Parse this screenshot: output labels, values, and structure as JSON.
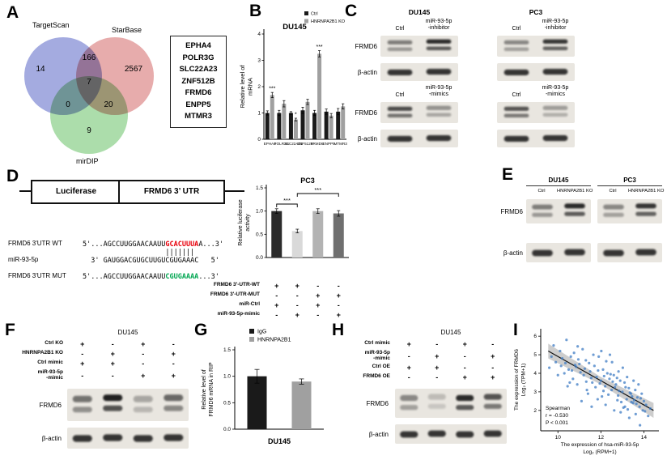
{
  "panel_labels": {
    "A": "A",
    "B": "B",
    "C": "C",
    "D": "D",
    "E": "E",
    "F": "F",
    "G": "G",
    "H": "H",
    "I": "I"
  },
  "colors": {
    "venn_targetscan": "#8a93d8",
    "venn_starbase": "#e09494",
    "venn_mirdip": "#95d493",
    "ctrl_bar": "#1a1a1a",
    "ko_bar": "#a0a0a0",
    "scatter_point": "#3f7cc4"
  },
  "panelA": {
    "sets": [
      {
        "name": "TargetScan"
      },
      {
        "name": "StarBase"
      },
      {
        "name": "mirDIP"
      }
    ],
    "counts": {
      "targetscan_only": "14",
      "starbase_only": "2567",
      "mirdip_only": "9",
      "targetscan_starbase": "166",
      "targetscan_mirdip": "0",
      "starbase_mirdip": "20",
      "all": "7"
    },
    "gene_list": [
      "EPHA4",
      "POLR3G",
      "SLC22A23",
      "ZNF512B",
      "FRMD6",
      "ENPP5",
      "MTMR3"
    ]
  },
  "panelC": {
    "headers": [
      "DU145",
      "PC3"
    ],
    "inhibitor_cols": [
      "Ctrl",
      "miR-93-5p\n-inhibitor"
    ],
    "mimic_cols": [
      "Ctrl",
      "miR-93-5p\n-mimics"
    ],
    "row_labels": [
      "FRMD6",
      "β-actin"
    ]
  },
  "panelD": {
    "construct": {
      "left": "Luciferase",
      "right": "FRMD6 3’ UTR"
    },
    "alignment": {
      "wt": {
        "name": "FRMD6 3'UTR WT",
        "prefix": "5'...AGCCUUGGAACAAUU",
        "site": "GCACUUUA",
        "suffix": "A...3'"
      },
      "pairing": "                    |||||||",
      "mir": {
        "name": "miR-93-5p",
        "prefix": "  3' GAUGGACGUGCUUGU",
        "site": "CGUGAAA",
        "suffix": "C   5'"
      },
      "mut": {
        "name": "FRMD6 3'UTR MUT",
        "prefix": "5'...AGCCUUGGAACAAUU",
        "site": "CGUGAAAA",
        "suffix": "...3'"
      }
    }
  },
  "panelE": {
    "headers": [
      "DU145",
      "PC3"
    ],
    "cols": [
      "Ctrl",
      "HNRNPA2B1 KO"
    ],
    "row_labels": [
      "FRMD6",
      "β-actin"
    ]
  },
  "panelF": {
    "title": "DU145",
    "conditions": [
      {
        "label": "Ctrl KO",
        "values": [
          "+",
          "-",
          "+",
          "-"
        ]
      },
      {
        "label": "HNRNPA2B1 KO",
        "values": [
          "-",
          "+",
          "-",
          "+"
        ]
      },
      {
        "label": "Ctrl mimic",
        "values": [
          "+",
          "+",
          "-",
          "-"
        ]
      },
      {
        "label": "miR-93-5p\n-mimic",
        "values": [
          "-",
          "-",
          "+",
          "+"
        ]
      }
    ],
    "row_labels": [
      "FRMD6",
      "β-actin"
    ]
  },
  "panelH": {
    "title": "DU145",
    "conditions": [
      {
        "label": "Ctrl mimic",
        "values": [
          "+",
          "-",
          "+",
          "-"
        ]
      },
      {
        "label": "miR-93-5p\n-mimic",
        "values": [
          "-",
          "+",
          "-",
          "+"
        ]
      },
      {
        "label": "Ctrl OE",
        "values": [
          "+",
          "+",
          "-",
          "-"
        ]
      },
      {
        "label": "FRMD6 OE",
        "values": [
          "-",
          "-",
          "+",
          "+"
        ]
      }
    ],
    "row_labels": [
      "FRMD6",
      "β-actin"
    ]
  },
  "blots": {
    "c1f_du": {
      "lanes": [
        0.5,
        0.9
      ],
      "double": true
    },
    "c1f_pc": {
      "lanes": [
        0.45,
        0.85
      ],
      "double": true
    },
    "c1a_du": {
      "lanes": [
        0.85,
        0.85
      ]
    },
    "c1a_pc": {
      "lanes": [
        0.85,
        0.85
      ]
    },
    "c2f_du": {
      "lanes": [
        0.75,
        0.4
      ],
      "double": true
    },
    "c2f_pc": {
      "lanes": [
        0.7,
        0.35
      ],
      "double": true
    },
    "c2a_du": {
      "lanes": [
        0.85,
        0.85
      ]
    },
    "c2a_pc": {
      "lanes": [
        0.85,
        0.85
      ]
    },
    "e_f_du": {
      "lanes": [
        0.5,
        0.9
      ],
      "double": true
    },
    "e_f_pc": {
      "lanes": [
        0.45,
        0.85
      ],
      "double": true
    },
    "e_a_du": {
      "lanes": [
        0.85,
        0.85
      ]
    },
    "e_a_pc": {
      "lanes": [
        0.85,
        0.85
      ]
    },
    "f_f": {
      "lanes": [
        0.55,
        0.95,
        0.3,
        0.6
      ],
      "double": true
    },
    "f_a": {
      "lanes": [
        0.85,
        0.85,
        0.85,
        0.85
      ]
    },
    "h_f": {
      "lanes": [
        0.45,
        0.2,
        0.9,
        0.7
      ],
      "double": true
    },
    "h_a": {
      "lanes": [
        0.85,
        0.85,
        0.85,
        0.85
      ]
    }
  },
  "chart_data": [
    {
      "id": "B",
      "type": "bar",
      "title": "DU145",
      "ylabel_lines": [
        "Relative level of",
        "mRNA"
      ],
      "ylim": [
        0,
        4
      ],
      "yticks": [
        "0",
        "1",
        "2",
        "3",
        "4"
      ],
      "categories": [
        "EPHA4",
        "POLR3G",
        "SLC22A23",
        "ZNF512B",
        "FRMD6",
        "ENPP5",
        "MTMR3"
      ],
      "series": [
        {
          "name": "Ctrl",
          "color": "#1a1a1a",
          "values": [
            1.0,
            1.0,
            1.0,
            1.1,
            1.0,
            1.05,
            1.05
          ],
          "errors": [
            0.08,
            0.1,
            0.05,
            0.12,
            0.1,
            0.1,
            0.12
          ]
        },
        {
          "name": "HNRNPA2B1 KO",
          "color": "#a0a0a0",
          "values": [
            1.68,
            1.35,
            0.75,
            1.42,
            3.25,
            0.9,
            1.25
          ],
          "errors": [
            0.1,
            0.12,
            0.05,
            0.1,
            0.12,
            0.08,
            0.1
          ]
        }
      ],
      "significance": [
        {
          "category_index": 0,
          "label": "***"
        },
        {
          "category_index": 2,
          "label": "*"
        },
        {
          "category_index": 4,
          "label": "***"
        }
      ]
    },
    {
      "id": "D",
      "type": "bar",
      "title": "PC3",
      "ylabel_lines": [
        "Relative luciferase",
        "activity"
      ],
      "ylim": [
        0,
        1.5
      ],
      "yticks": [
        "0.0",
        "0.5",
        "1.0",
        "1.5"
      ],
      "values": [
        1.0,
        0.57,
        1.0,
        0.95
      ],
      "errors": [
        0.05,
        0.04,
        0.05,
        0.06
      ],
      "bar_colors": [
        "#2b2b2b",
        "#d9d9d9",
        "#b3b3b3",
        "#6f6f6f"
      ],
      "sig_brackets": [
        {
          "from": 0,
          "to": 1,
          "label": "***"
        },
        {
          "from": 1,
          "to": 3,
          "label": "***"
        }
      ],
      "conditions": [
        {
          "label": "FRMD6 3'-UTR-WT",
          "values": [
            "+",
            "+",
            "-",
            "-"
          ]
        },
        {
          "label": "FRMD6 3'-UTR-MUT",
          "values": [
            "-",
            "-",
            "+",
            "+"
          ]
        },
        {
          "label": "miR-Ctrl",
          "values": [
            "+",
            "-",
            "+",
            "-"
          ]
        },
        {
          "label": "miR-93-5p-mimic",
          "values": [
            "-",
            "+",
            "-",
            "+"
          ]
        }
      ]
    },
    {
      "id": "G",
      "type": "bar",
      "ylabel_lines": [
        "Relative level of",
        "FRMD6 mRNA in RIP"
      ],
      "xlabel": "DU145",
      "ylim": [
        0,
        1.5
      ],
      "yticks": [
        "0.0",
        "0.5",
        "1.0",
        "1.5"
      ],
      "categories": [
        "IgG",
        "HNRNPA2B1"
      ],
      "values": [
        1.0,
        0.9
      ],
      "errors": [
        0.13,
        0.05
      ],
      "bar_colors": [
        "#1a1a1a",
        "#a0a0a0"
      ],
      "legend": [
        {
          "label": "IgG",
          "color": "#1a1a1a"
        },
        {
          "label": "HNRNPA2B1",
          "color": "#a0a0a0"
        }
      ]
    },
    {
      "id": "I",
      "type": "scatter",
      "xlabel_lines": [
        "The expression of hsa-miR-93-5p",
        "Log₂ (RPM+1)"
      ],
      "ylabel_lines": [
        "The expression of FRMD6",
        "Log₂ (TPM+1)"
      ],
      "xlim": [
        9.2,
        14.7
      ],
      "ylim": [
        0.9,
        6.4
      ],
      "xticks": [
        10,
        12,
        14
      ],
      "yticks": [
        2,
        3,
        4,
        5,
        6
      ],
      "annotation": [
        "Spearman",
        "r = -0.530",
        "P < 0.001"
      ],
      "trend": {
        "x1": 9.55,
        "y1": 5.2,
        "x2": 14.45,
        "y2": 2.0,
        "band_end": 0.4,
        "band_mid": 0.2
      },
      "points": [
        [
          9.6,
          4.3
        ],
        [
          9.7,
          4.9
        ],
        [
          9.8,
          5.5
        ],
        [
          9.9,
          4.6
        ],
        [
          10.0,
          3.9
        ],
        [
          10.1,
          5.2
        ],
        [
          10.15,
          4.4
        ],
        [
          10.2,
          4.8
        ],
        [
          10.3,
          4.0
        ],
        [
          10.35,
          4.55
        ],
        [
          10.4,
          5.8
        ],
        [
          10.45,
          3.3
        ],
        [
          10.5,
          4.2
        ],
        [
          10.55,
          3.5
        ],
        [
          10.6,
          4.9
        ],
        [
          10.65,
          4.15
        ],
        [
          10.7,
          3.7
        ],
        [
          10.75,
          5.1
        ],
        [
          10.8,
          4.45
        ],
        [
          10.85,
          4.35
        ],
        [
          10.9,
          3.4
        ],
        [
          10.92,
          5.45
        ],
        [
          10.95,
          4.75
        ],
        [
          11.0,
          4.5
        ],
        [
          11.05,
          4.05
        ],
        [
          11.1,
          2.5
        ],
        [
          11.15,
          5.3
        ],
        [
          11.2,
          3.9
        ],
        [
          11.25,
          4.25
        ],
        [
          11.3,
          4.7
        ],
        [
          11.32,
          3.55
        ],
        [
          11.35,
          3.1
        ],
        [
          11.4,
          2.9
        ],
        [
          11.45,
          4.55
        ],
        [
          11.5,
          4.1
        ],
        [
          11.55,
          3.75
        ],
        [
          11.57,
          2.2
        ],
        [
          11.6,
          3.5
        ],
        [
          11.65,
          5.0
        ],
        [
          11.7,
          4.4
        ],
        [
          11.75,
          3.25
        ],
        [
          11.8,
          3.8
        ],
        [
          11.85,
          2.6
        ],
        [
          11.87,
          4.15
        ],
        [
          11.9,
          4.9
        ],
        [
          11.95,
          3.45
        ],
        [
          12.0,
          3.6
        ],
        [
          12.02,
          5.2
        ],
        [
          12.05,
          2.75
        ],
        [
          12.1,
          4.2
        ],
        [
          12.12,
          3.05
        ],
        [
          12.15,
          3.85
        ],
        [
          12.2,
          3.3
        ],
        [
          12.22,
          2.3
        ],
        [
          12.25,
          4.65
        ],
        [
          12.3,
          4.0
        ],
        [
          12.35,
          2.85
        ],
        [
          12.4,
          3.7
        ],
        [
          12.42,
          5.0
        ],
        [
          12.45,
          3.95
        ],
        [
          12.5,
          3.1
        ],
        [
          12.52,
          4.6
        ],
        [
          12.55,
          3.55
        ],
        [
          12.6,
          3.9
        ],
        [
          12.62,
          2.0
        ],
        [
          12.65,
          3.25
        ],
        [
          12.7,
          3.4
        ],
        [
          12.75,
          3.75
        ],
        [
          12.77,
          2.55
        ],
        [
          12.8,
          2.8
        ],
        [
          12.82,
          4.1
        ],
        [
          12.85,
          3.05
        ],
        [
          12.9,
          3.6
        ],
        [
          12.92,
          1.9
        ],
        [
          12.95,
          2.45
        ],
        [
          13.0,
          3.0
        ],
        [
          13.02,
          4.3
        ],
        [
          13.05,
          2.15
        ],
        [
          13.1,
          3.5
        ],
        [
          13.12,
          2.2
        ],
        [
          13.15,
          3.25
        ],
        [
          13.2,
          2.6
        ],
        [
          13.22,
          3.8
        ],
        [
          13.25,
          2.05
        ],
        [
          13.3,
          3.2
        ],
        [
          13.32,
          1.6
        ],
        [
          13.35,
          2.95
        ],
        [
          13.4,
          2.9
        ],
        [
          13.42,
          2.45
        ],
        [
          13.45,
          2.75
        ],
        [
          13.5,
          2.4
        ],
        [
          13.52,
          3.6
        ],
        [
          13.55,
          2.55
        ],
        [
          13.6,
          3.1
        ],
        [
          13.62,
          1.8
        ],
        [
          13.65,
          2.35
        ],
        [
          13.7,
          2.7
        ],
        [
          13.75,
          3.4
        ],
        [
          13.8,
          2.2
        ],
        [
          13.82,
          1.2
        ],
        [
          13.85,
          2.65
        ],
        [
          13.9,
          2.9
        ],
        [
          13.95,
          2.0
        ],
        [
          14.0,
          2.5
        ],
        [
          14.05,
          1.95
        ],
        [
          14.1,
          2.3
        ],
        [
          14.2,
          1.7
        ],
        [
          14.3,
          2.1
        ]
      ]
    }
  ]
}
